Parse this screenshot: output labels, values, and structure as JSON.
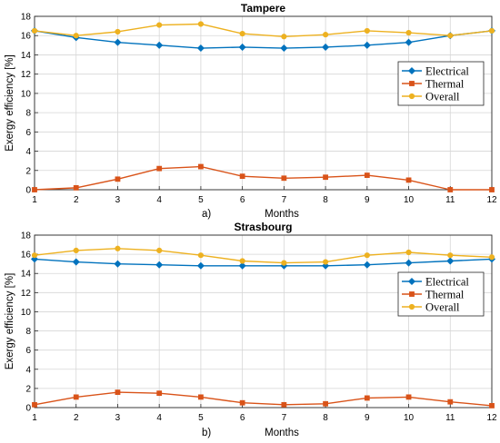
{
  "colors": {
    "electrical": "#0072BD",
    "thermal": "#D95319",
    "overall": "#EDB120",
    "grid": "#d6d6d6",
    "axes": "#262626"
  },
  "chart_data": [
    {
      "type": "line",
      "panel_label": "a)",
      "title": "Tampere",
      "xlabel": "Months",
      "ylabel": "Exergy efficiency [%]",
      "xlim": [
        1,
        12
      ],
      "ylim": [
        0,
        18
      ],
      "xticks": [
        "1",
        "2",
        "3",
        "4",
        "5",
        "6",
        "7",
        "8",
        "9",
        "10",
        "11",
        "12"
      ],
      "yticks": [
        "0",
        "2",
        "4",
        "6",
        "8",
        "10",
        "12",
        "14",
        "16",
        "18"
      ],
      "grid": true,
      "legend_position": "right, upper-middle",
      "x": [
        1,
        2,
        3,
        4,
        5,
        6,
        7,
        8,
        9,
        10,
        11,
        12
      ],
      "series": [
        {
          "name": "Electrical",
          "marker": "diamond",
          "color_key": "electrical",
          "values": [
            16.5,
            15.8,
            15.3,
            15.0,
            14.7,
            14.8,
            14.7,
            14.8,
            15.0,
            15.3,
            16.0,
            16.5
          ]
        },
        {
          "name": "Thermal",
          "marker": "square",
          "color_key": "thermal",
          "values": [
            0.0,
            0.2,
            1.1,
            2.2,
            2.4,
            1.4,
            1.2,
            1.3,
            1.5,
            1.0,
            0.0,
            0.0
          ]
        },
        {
          "name": "Overall",
          "marker": "circle",
          "color_key": "overall",
          "values": [
            16.5,
            16.0,
            16.4,
            17.1,
            17.2,
            16.2,
            15.9,
            16.1,
            16.5,
            16.3,
            16.0,
            16.5
          ]
        }
      ]
    },
    {
      "type": "line",
      "panel_label": "b)",
      "title": "Strasbourg",
      "xlabel": "Months",
      "ylabel": "Exergy efficiency [%]",
      "xlim": [
        1,
        12
      ],
      "ylim": [
        0,
        18
      ],
      "xticks": [
        "1",
        "2",
        "3",
        "4",
        "5",
        "6",
        "7",
        "8",
        "9",
        "10",
        "11",
        "12"
      ],
      "yticks": [
        "0",
        "2",
        "4",
        "6",
        "8",
        "10",
        "12",
        "14",
        "16",
        "18"
      ],
      "grid": true,
      "legend_position": "right, upper-middle",
      "x": [
        1,
        2,
        3,
        4,
        5,
        6,
        7,
        8,
        9,
        10,
        11,
        12
      ],
      "series": [
        {
          "name": "Electrical",
          "marker": "diamond",
          "color_key": "electrical",
          "values": [
            15.5,
            15.2,
            15.0,
            14.9,
            14.8,
            14.8,
            14.8,
            14.8,
            14.9,
            15.1,
            15.3,
            15.5
          ]
        },
        {
          "name": "Thermal",
          "marker": "square",
          "color_key": "thermal",
          "values": [
            0.3,
            1.1,
            1.6,
            1.5,
            1.1,
            0.5,
            0.3,
            0.4,
            1.0,
            1.1,
            0.6,
            0.2
          ]
        },
        {
          "name": "Overall",
          "marker": "circle",
          "color_key": "overall",
          "values": [
            15.9,
            16.4,
            16.6,
            16.4,
            15.9,
            15.3,
            15.1,
            15.2,
            15.9,
            16.2,
            15.9,
            15.7
          ]
        }
      ]
    }
  ]
}
